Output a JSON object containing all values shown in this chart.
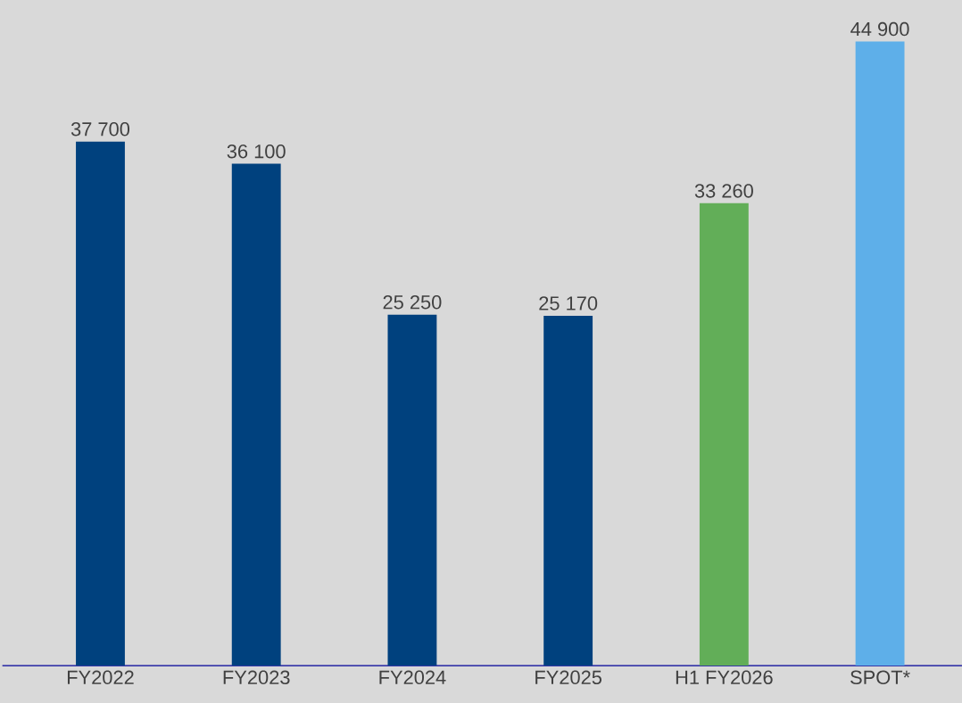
{
  "chart_data": {
    "type": "bar",
    "categories": [
      "FY2022",
      "FY2023",
      "FY2024",
      "FY2025",
      "H1 FY2026",
      "SPOT*"
    ],
    "values": [
      37700,
      36100,
      25250,
      25170,
      33260,
      44900
    ],
    "colors": [
      "#00417e",
      "#00417e",
      "#00417e",
      "#00417e",
      "#62ae58",
      "#5eafe9"
    ],
    "value_labels": [
      "37 700",
      "36 100",
      "25 250",
      "25 170",
      "33 260",
      "44 900"
    ],
    "grid": false
  }
}
